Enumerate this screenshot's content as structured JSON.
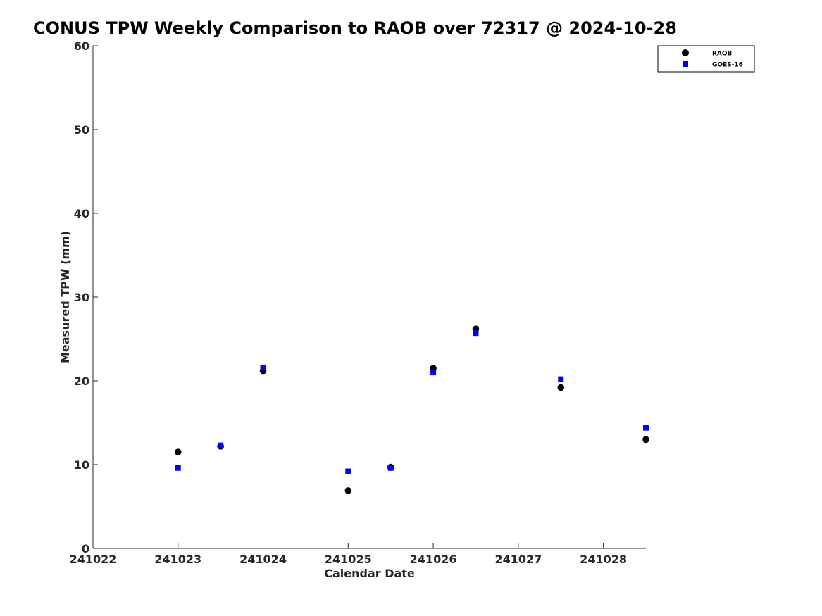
{
  "chart_data": {
    "type": "scatter",
    "title": "CONUS TPW Weekly Comparison to RAOB over 72317 @ 2024-10-28",
    "xlabel": "Calendar Date",
    "ylabel": "Measured TPW (mm)",
    "xlim": [
      241022,
      241028.5
    ],
    "ylim": [
      0,
      60
    ],
    "x_ticks": [
      "241022",
      "241023",
      "241024",
      "241025",
      "241026",
      "241027",
      "241028"
    ],
    "y_ticks": [
      "0",
      "10",
      "20",
      "30",
      "40",
      "50",
      "60"
    ],
    "grid": false,
    "legend_position": "top-right",
    "series": [
      {
        "name": "RAOB",
        "marker": "circle",
        "color": "#000000",
        "points": [
          {
            "x": 241023.0,
            "y": 11.5
          },
          {
            "x": 241023.5,
            "y": 12.2
          },
          {
            "x": 241024.0,
            "y": 21.2
          },
          {
            "x": 241025.0,
            "y": 6.9
          },
          {
            "x": 241025.5,
            "y": 9.7
          },
          {
            "x": 241026.0,
            "y": 21.5
          },
          {
            "x": 241026.5,
            "y": 26.2
          },
          {
            "x": 241027.5,
            "y": 19.2
          },
          {
            "x": 241028.5,
            "y": 13.0
          }
        ]
      },
      {
        "name": "GOES-16",
        "marker": "square",
        "color": "#0000ff",
        "points": [
          {
            "x": 241023.0,
            "y": 9.6
          },
          {
            "x": 241023.5,
            "y": 12.3
          },
          {
            "x": 241024.0,
            "y": 21.6
          },
          {
            "x": 241025.0,
            "y": 9.2
          },
          {
            "x": 241025.5,
            "y": 9.6
          },
          {
            "x": 241026.0,
            "y": 21.0
          },
          {
            "x": 241026.5,
            "y": 25.7
          },
          {
            "x": 241027.5,
            "y": 20.2
          },
          {
            "x": 241028.5,
            "y": 14.4
          }
        ]
      }
    ]
  }
}
